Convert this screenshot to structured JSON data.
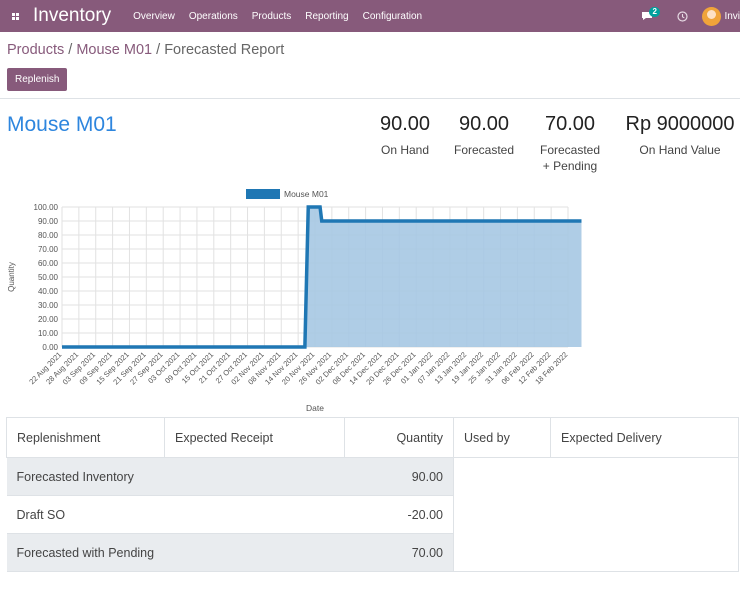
{
  "topbar": {
    "app_title": "Inventory",
    "menu": [
      "Overview",
      "Operations",
      "Products",
      "Reporting",
      "Configuration"
    ],
    "chat_badge": "2",
    "user_name": "Invi"
  },
  "breadcrumb": {
    "parent": "Products",
    "separator1": " / ",
    "product": "Mouse M01",
    "separator2": " / ",
    "current": "Forecasted Report"
  },
  "buttons": {
    "replenish": "Replenish"
  },
  "product": {
    "name": "Mouse M01"
  },
  "stats": [
    {
      "value": "90.00",
      "label": "On Hand"
    },
    {
      "value": "90.00",
      "label": "Forecasted"
    },
    {
      "value": "70.00",
      "label": "Forecasted\n+ Pending"
    },
    {
      "value": "Rp 9000000",
      "label": "On Hand Value"
    }
  ],
  "chart_data": {
    "type": "area",
    "legend": "Mouse M01",
    "xlabel": "Date",
    "ylabel": "Quantity",
    "ylim": [
      0,
      100
    ],
    "yticks": [
      "0.00",
      "10.00",
      "20.00",
      "30.00",
      "40.00",
      "50.00",
      "60.00",
      "70.00",
      "80.00",
      "90.00",
      "100.00"
    ],
    "categories": [
      "22 Aug 2021",
      "28 Aug 2021",
      "03 Sep 2021",
      "09 Sep 2021",
      "15 Sep 2021",
      "21 Sep 2021",
      "27 Sep 2021",
      "03 Oct 2021",
      "09 Oct 2021",
      "15 Oct 2021",
      "21 Oct 2021",
      "27 Oct 2021",
      "02 Nov 2021",
      "08 Nov 2021",
      "14 Nov 2021",
      "20 Nov 2021",
      "26 Nov 2021",
      "02 Dec 2021",
      "08 Dec 2021",
      "14 Dec 2021",
      "20 Dec 2021",
      "26 Dec 2021",
      "01 Jan 2022",
      "07 Jan 2022",
      "13 Jan 2022",
      "19 Jan 2022",
      "25 Jan 2022",
      "31 Jan 2022",
      "06 Feb 2022",
      "12 Feb 2022",
      "18 Feb 2022"
    ],
    "points": [
      [
        0,
        0
      ],
      [
        14.4,
        0
      ],
      [
        14.6,
        100
      ],
      [
        15.3,
        100
      ],
      [
        15.4,
        90
      ],
      [
        30.8,
        90
      ]
    ],
    "colors": {
      "line": "#1f77b4",
      "fill": "#a6c8e3"
    },
    "grid": true,
    "legend_position": "top-center"
  },
  "table": {
    "headers": [
      "Replenishment",
      "Expected Receipt",
      "Quantity",
      "Used by",
      "Expected Delivery"
    ],
    "rows": [
      {
        "label": "Forecasted Inventory",
        "receipt": "",
        "quantity": "90.00"
      },
      {
        "label": "Draft SO",
        "receipt": "",
        "quantity": "-20.00"
      },
      {
        "label": "Forecasted with Pending",
        "receipt": "",
        "quantity": "70.00"
      }
    ]
  }
}
